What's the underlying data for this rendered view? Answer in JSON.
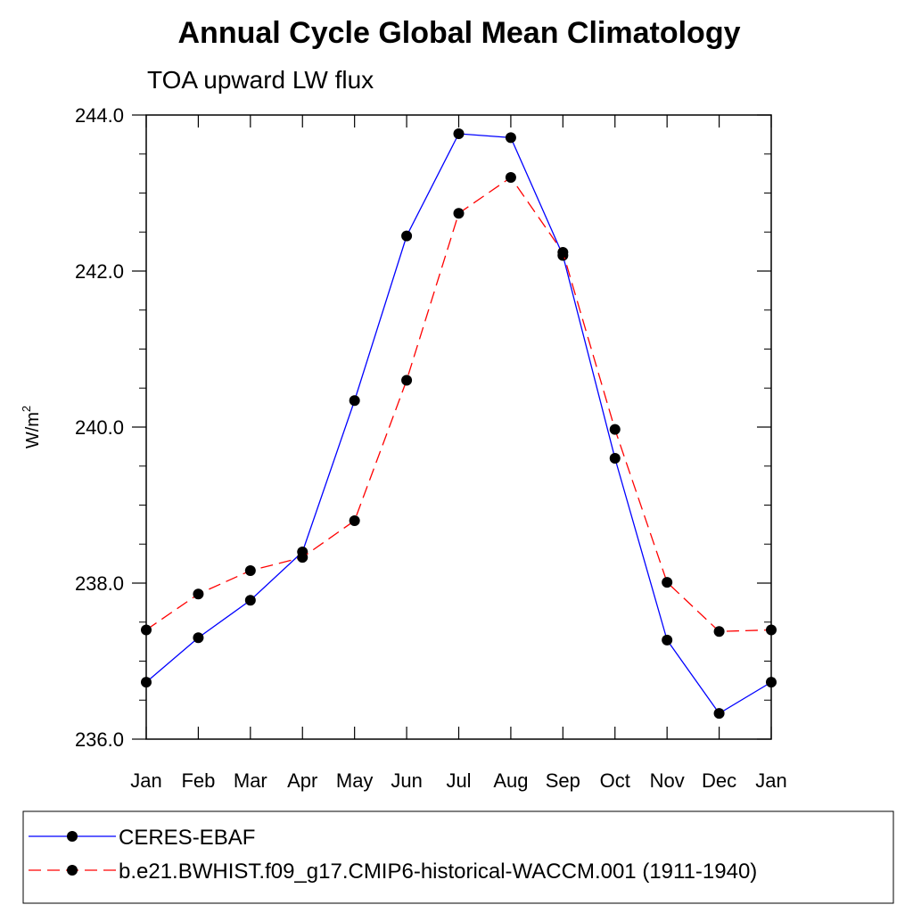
{
  "chart_data": {
    "type": "line",
    "title": "Annual Cycle Global Mean Climatology",
    "subtitle": "TOA upward LW flux",
    "ylabel": "W/m",
    "ylabel_sup": "2",
    "xlabel": "",
    "categories": [
      "Jan",
      "Feb",
      "Mar",
      "Apr",
      "May",
      "Jun",
      "Jul",
      "Aug",
      "Sep",
      "Oct",
      "Nov",
      "Dec",
      "Jan"
    ],
    "ylim": [
      236.0,
      244.0
    ],
    "yticks": [
      236.0,
      238.0,
      240.0,
      242.0,
      244.0
    ],
    "ytick_labels": [
      "236.0",
      "238.0",
      "240.0",
      "242.0",
      "244.0"
    ],
    "grid": false,
    "legend_position": "bottom",
    "series": [
      {
        "name": "CERES-EBAF",
        "color": "#0000ff",
        "dash": "solid",
        "values": [
          236.73,
          237.3,
          237.78,
          238.4,
          240.34,
          242.45,
          243.76,
          243.71,
          242.2,
          239.6,
          237.27,
          236.33,
          236.73
        ]
      },
      {
        "name": "b.e21.BWHIST.f09_g17.CMIP6-historical-WACCM.001 (1911-1940)",
        "color": "#ff0000",
        "dash": "dashed",
        "values": [
          237.4,
          237.86,
          238.16,
          238.33,
          238.8,
          240.6,
          242.74,
          243.2,
          242.24,
          239.97,
          238.01,
          237.38,
          237.4
        ]
      }
    ]
  }
}
